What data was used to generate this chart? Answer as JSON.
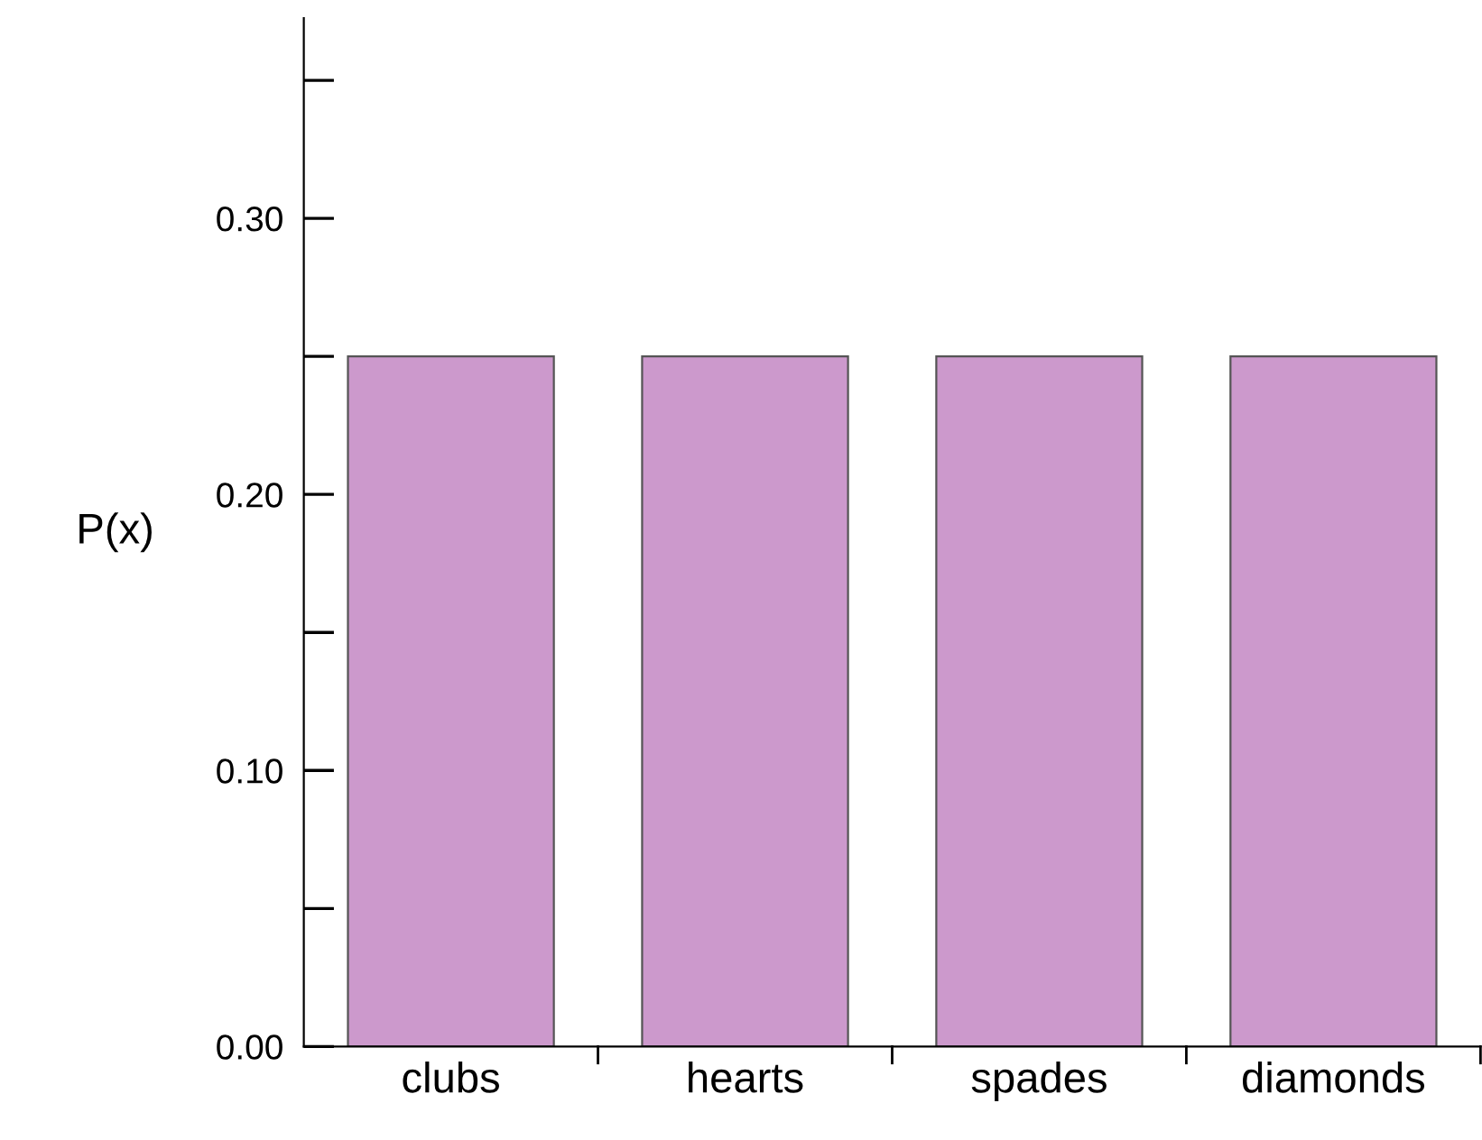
{
  "chart_data": {
    "type": "bar",
    "ylabel": "P(x)",
    "categories": [
      "clubs",
      "hearts",
      "spades",
      "diamonds"
    ],
    "values": [
      0.25,
      0.25,
      0.25,
      0.25
    ],
    "color": "#cc99cc",
    "ylim": [
      0,
      0.3725
    ],
    "yticks": [
      {
        "value": 0,
        "label": "0.00"
      },
      {
        "value": 0.1,
        "label": "0.10"
      },
      {
        "value": 0.2,
        "label": "0.20"
      },
      {
        "value": 0.3,
        "label": "0.30"
      }
    ],
    "grid": false,
    "legend": false
  }
}
